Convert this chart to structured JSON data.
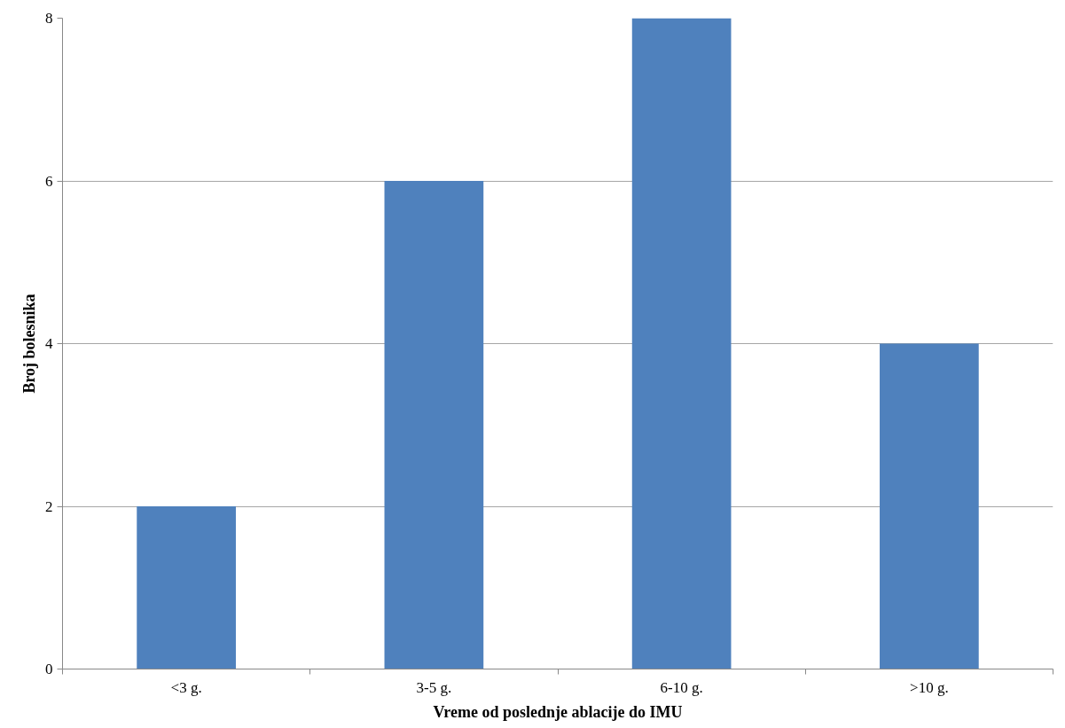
{
  "chart_data": {
    "type": "bar",
    "xlabel": "Vreme od poslednje ablacije do IMU",
    "ylabel": "Broj bolesnika",
    "categories": [
      "<3 g.",
      "3-5 g.",
      "6-10 g.",
      ">10 g."
    ],
    "values": [
      2,
      6,
      8,
      4
    ],
    "color": "#4f81bd",
    "ylim": [
      0,
      8
    ],
    "yticks": [
      0,
      2,
      4,
      6,
      8
    ],
    "grid": "y"
  }
}
